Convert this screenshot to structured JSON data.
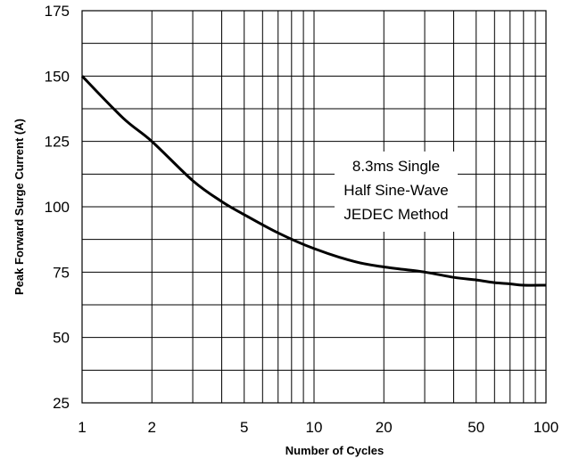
{
  "chart_data": {
    "type": "line",
    "title": "",
    "xlabel": "Number of Cycles",
    "ylabel": "Peak Forward Surge Current (A)",
    "xscale": "log",
    "xlim": [
      1,
      100
    ],
    "ylim": [
      25,
      175
    ],
    "grid": true,
    "x_ticks": [
      "1",
      "2",
      "5",
      "10",
      "20",
      "50",
      "100"
    ],
    "y_ticks": [
      "175",
      "150",
      "125",
      "100",
      "75",
      "50",
      "25"
    ],
    "annotation": [
      "8.3ms Single",
      "Half Sine-Wave",
      "JEDEC Method"
    ],
    "series": [
      {
        "x": [
          1,
          1.5,
          2,
          3,
          4,
          5,
          7,
          10,
          15,
          20,
          30,
          40,
          50,
          60,
          70,
          80,
          100
        ],
        "y": [
          150,
          134,
          125,
          110,
          102,
          97,
          90,
          84,
          79,
          77,
          75,
          73,
          72,
          71,
          70.5,
          70,
          70
        ]
      }
    ]
  }
}
